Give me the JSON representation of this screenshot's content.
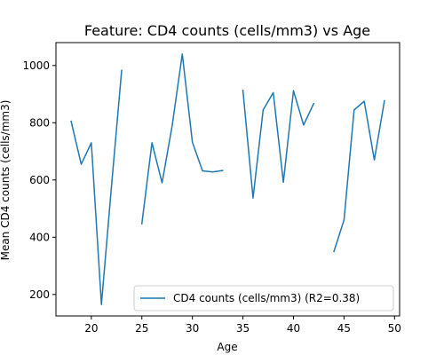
{
  "chart_data": {
    "type": "line",
    "title": "Feature: CD4 counts (cells/mm3) vs Age",
    "xlabel": "Age",
    "ylabel": "Mean CD4 counts (cells/mm3)",
    "xlim": [
      16.5,
      50.5
    ],
    "ylim": [
      125,
      1080
    ],
    "xticks": [
      20,
      25,
      30,
      35,
      40,
      45,
      50
    ],
    "yticks": [
      200,
      400,
      600,
      800,
      1000
    ],
    "grid": false,
    "legend_position": "lower-right",
    "series": [
      {
        "name": "CD4 counts (cells/mm3) (R2=0.38)",
        "color": "#1f77b4",
        "points": [
          [
            18,
            805
          ],
          [
            19,
            655
          ],
          [
            20,
            730
          ],
          [
            21,
            165
          ],
          [
            22,
            580
          ],
          [
            23,
            983
          ],
          [
            24,
            null
          ],
          [
            25,
            447
          ],
          [
            26,
            730
          ],
          [
            27,
            590
          ],
          [
            28,
            790
          ],
          [
            29,
            1040
          ],
          [
            30,
            732
          ],
          [
            31,
            632
          ],
          [
            32,
            628
          ],
          [
            33,
            633
          ],
          [
            34,
            null
          ],
          [
            35,
            913
          ],
          [
            36,
            537
          ],
          [
            37,
            845
          ],
          [
            38,
            905
          ],
          [
            39,
            592
          ],
          [
            40,
            912
          ],
          [
            41,
            792
          ],
          [
            42,
            867
          ],
          [
            43,
            null
          ],
          [
            44,
            350
          ],
          [
            45,
            460
          ],
          [
            46,
            845
          ],
          [
            47,
            875
          ],
          [
            48,
            670
          ],
          [
            49,
            877
          ]
        ]
      }
    ]
  }
}
